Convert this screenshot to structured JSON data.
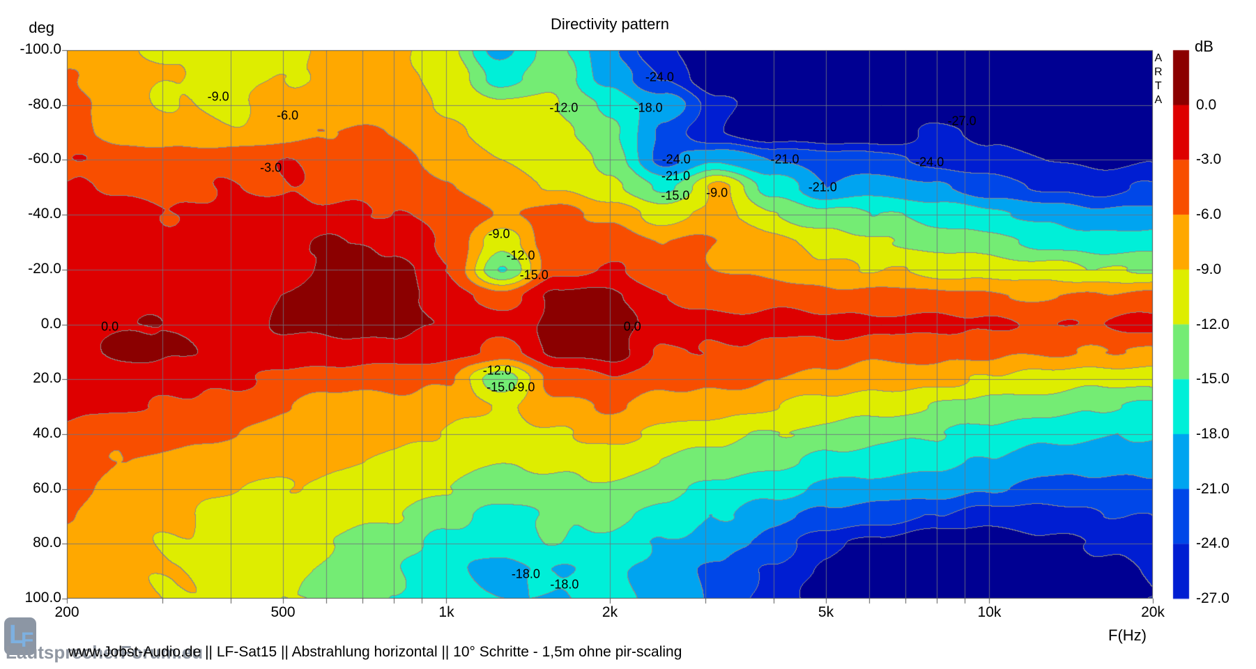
{
  "watermark": {
    "text": "ARTA"
  },
  "footer": {
    "text": "www.Jobst-Audio.de  ||  LF-Sat15  ||  Abstrahlung horizontal  ||  10° Schritte - 1,5m ohne pir-scaling"
  },
  "logo": {
    "letter_l": "L",
    "letter_f": "F",
    "wordmark": "LautsprecherForum.eu"
  },
  "chart_data": {
    "type": "heatmap",
    "title": "Directivity pattern",
    "xlabel": "F(Hz)",
    "ylabel": "deg",
    "x_scale": "log",
    "x_range_hz": [
      200,
      20000
    ],
    "y_range_deg": [
      -100,
      100
    ],
    "grid": true,
    "legend_position": "right-colorbar",
    "contour_interval_db": 3,
    "colorbar": {
      "title": "dB",
      "tick_labels": [
        "0.0",
        "-3.0",
        "-6.0",
        "-9.0",
        "-12.0",
        "-15.0",
        "-18.0",
        "-21.0",
        "-24.0",
        "-27.0"
      ]
    },
    "band_colors": [
      "#8B0000",
      "#DE0000",
      "#F84E00",
      "#FFA800",
      "#DEED00",
      "#74EC74",
      "#00EFD8",
      "#00A4F0",
      "#0047E8",
      "#001ED2",
      "#000092"
    ],
    "y_tick_labels": [
      "-100.0",
      "-80.0",
      "-60.0",
      "-40.0",
      "-20.0",
      "0.0",
      "20.0",
      "40.0",
      "60.0",
      "80.0",
      "100.0"
    ],
    "x_tick_labels": [
      {
        "label": "200",
        "f_hz": 200
      },
      {
        "label": "500",
        "f_hz": 500
      },
      {
        "label": "1k",
        "f_hz": 1000
      },
      {
        "label": "2k",
        "f_hz": 2000
      },
      {
        "label": "5k",
        "f_hz": 5000
      },
      {
        "label": "10k",
        "f_hz": 10000
      },
      {
        "label": "20k",
        "f_hz": 20000
      }
    ],
    "grid_frequencies_hz": [
      300,
      400,
      500,
      600,
      700,
      800,
      900,
      1000,
      2000,
      3000,
      4000,
      5000,
      6000,
      7000,
      8000,
      9000,
      10000
    ],
    "tick_frequencies_hz": [
      200,
      300,
      400,
      500,
      600,
      700,
      800,
      900,
      1000,
      2000,
      3000,
      4000,
      5000,
      6000,
      7000,
      8000,
      9000,
      10000,
      20000
    ],
    "frequencies_hz": [
      200,
      250,
      315,
      400,
      500,
      630,
      800,
      1000,
      1250,
      1600,
      2000,
      2500,
      3150,
      4000,
      5000,
      6300,
      8000,
      10000,
      12500,
      16000,
      20000
    ],
    "angles_deg": [
      -100,
      -90,
      -80,
      -70,
      -60,
      -50,
      -40,
      -30,
      -20,
      -10,
      0,
      10,
      20,
      30,
      40,
      50,
      60,
      70,
      80,
      90,
      100
    ],
    "values_db": [
      [
        -8,
        -8,
        -10,
        -10,
        -10,
        -8,
        -8,
        -11,
        -19,
        -14,
        -20,
        -27,
        -30,
        -30,
        -30,
        -30,
        -30,
        -30,
        -30,
        -30,
        -30
      ],
      [
        -6,
        -8,
        -9,
        -10,
        -9,
        -8,
        -8,
        -10,
        -16,
        -13,
        -19,
        -24,
        -30,
        -30,
        -30,
        -30,
        -30,
        -30,
        -30,
        -30,
        -30
      ],
      [
        -5,
        -8,
        -9,
        -10,
        -8,
        -7,
        -7,
        -9,
        -11,
        -12,
        -16,
        -19,
        -26,
        -30,
        -30,
        -30,
        -30,
        -30,
        -30,
        -30,
        -30
      ],
      [
        -5,
        -7,
        -8,
        -9,
        -7,
        -6,
        -6,
        -8,
        -10,
        -11,
        -14,
        -22,
        -27,
        -29,
        -30,
        -30,
        -26,
        -28,
        -30,
        -30,
        -29
      ],
      [
        -3,
        -4,
        -5,
        -4,
        -3,
        -5,
        -5,
        -7,
        -9,
        -10,
        -13,
        -22,
        -18,
        -21,
        -22,
        -23,
        -25,
        -26,
        -27,
        -28,
        -27
      ],
      [
        -3,
        -3,
        -4,
        -3,
        -3,
        -4,
        -4,
        -6,
        -8,
        -9,
        -11,
        -16,
        -8,
        -16,
        -21,
        -19,
        -21,
        -23,
        -24,
        -25,
        -24
      ],
      [
        -2,
        -2,
        -3,
        -2,
        -2,
        -2,
        -3,
        -4,
        -6,
        -5,
        -7,
        -10,
        -8,
        -12,
        -14,
        -15,
        -16,
        -17,
        -19,
        -20,
        -20
      ],
      [
        -2,
        -1,
        -2,
        -1,
        -1,
        0.5,
        -0.5,
        -3,
        -11,
        -4,
        -4,
        -6,
        -6,
        -8,
        -10,
        -12,
        -13,
        -14,
        -16,
        -17,
        -16
      ],
      [
        -2,
        -2,
        -2,
        -1,
        -1,
        1,
        1,
        -3,
        -15,
        -4,
        -3,
        -5,
        -6,
        -7,
        -8,
        -9,
        -10,
        -10,
        -11,
        -12,
        -12
      ],
      [
        -1,
        -1,
        -1,
        -1,
        0,
        1,
        1,
        -1,
        -5,
        1,
        0.5,
        -3,
        -4,
        -4,
        -5,
        -5,
        -5,
        -6,
        -6,
        -6,
        -5
      ],
      [
        -1,
        0,
        -0.5,
        -1,
        0.5,
        1,
        1,
        -0.5,
        -2,
        1,
        1,
        -1.5,
        -2,
        -2,
        -2,
        -2,
        -2.5,
        -2.5,
        -3,
        -3,
        -2
      ],
      [
        -1,
        0.5,
        0.5,
        -1,
        -1,
        -1,
        -1,
        -2,
        -4,
        0.5,
        1,
        -3,
        -3,
        -4,
        -4,
        -5,
        -5,
        -5,
        -6,
        -6,
        -6
      ],
      [
        -2,
        -2,
        -2,
        -2,
        -4,
        -5,
        -5,
        -6,
        -14,
        -5,
        -3,
        -5,
        -5,
        -6,
        -7,
        -8,
        -8,
        -9,
        -10,
        -11,
        -11
      ],
      [
        -2,
        -3,
        -3,
        -4,
        -6,
        -7,
        -7,
        -8,
        -9,
        -7,
        -6,
        -7,
        -8,
        -9,
        -10,
        -11,
        -12,
        -13,
        -14,
        -15,
        -15
      ],
      [
        -3,
        -5,
        -5,
        -6,
        -7,
        -8,
        -8,
        -9,
        -10,
        -9,
        -8,
        -10,
        -11,
        -12,
        -13,
        -14,
        -15,
        -16,
        -17,
        -18,
        -18
      ],
      [
        -4,
        -6,
        -7,
        -8,
        -8,
        -9,
        -9,
        -10,
        -12,
        -11,
        -10,
        -12,
        -13,
        -14,
        -16,
        -16,
        -17,
        -18,
        -19,
        -20,
        -20
      ],
      [
        -5,
        -7,
        -8,
        -9,
        -9,
        -10,
        -10,
        -12,
        -14,
        -13,
        -12,
        -14,
        -16,
        -17,
        -19,
        -19,
        -20,
        -21,
        -22,
        -22,
        -22
      ],
      [
        -6,
        -8,
        -8,
        -10,
        -10,
        -11,
        -12,
        -14,
        -16,
        -15,
        -14,
        -16,
        -18,
        -20,
        -22,
        -23,
        -24,
        -25,
        -25,
        -24,
        -24
      ],
      [
        -7,
        -8,
        -9,
        -10,
        -11,
        -12,
        -14,
        -16,
        -17,
        -15,
        -16,
        -18,
        -20,
        -22,
        -26,
        -28,
        -30,
        -30,
        -28,
        -27,
        -26
      ],
      [
        -7,
        -8,
        -9,
        -10,
        -11,
        -13,
        -15,
        -17,
        -19,
        -18,
        -17,
        -19,
        -22,
        -24,
        -28,
        -30,
        -30,
        -30,
        -29,
        -28,
        -27
      ],
      [
        -7,
        -8,
        -9,
        -10,
        -12,
        -13,
        -15,
        -17,
        -18,
        -18,
        -17,
        -19,
        -22,
        -25,
        -29,
        -30,
        -30,
        -30,
        -29,
        -28,
        -27
      ]
    ],
    "contour_labels": [
      {
        "text": "-9.0",
        "f_hz": 380,
        "angle_deg": -83
      },
      {
        "text": "-6.0",
        "f_hz": 510,
        "angle_deg": -76
      },
      {
        "text": "-3.0",
        "f_hz": 475,
        "angle_deg": -57
      },
      {
        "text": "-12.0",
        "f_hz": 1645,
        "angle_deg": -79
      },
      {
        "text": "-18.0",
        "f_hz": 2354,
        "angle_deg": -79
      },
      {
        "text": "-24.0",
        "f_hz": 2470,
        "angle_deg": -90
      },
      {
        "text": "-24.0",
        "f_hz": 2650,
        "angle_deg": -60
      },
      {
        "text": "-21.0",
        "f_hz": 2645,
        "angle_deg": -54
      },
      {
        "text": "-15.0",
        "f_hz": 2640,
        "angle_deg": -47
      },
      {
        "text": "-9.0",
        "f_hz": 3150,
        "angle_deg": -48
      },
      {
        "text": "-21.0",
        "f_hz": 4200,
        "angle_deg": -60
      },
      {
        "text": "-21.0",
        "f_hz": 4930,
        "angle_deg": -50
      },
      {
        "text": "-27.0",
        "f_hz": 8900,
        "angle_deg": -74
      },
      {
        "text": "-24.0",
        "f_hz": 7760,
        "angle_deg": -59
      },
      {
        "text": "-9.0",
        "f_hz": 1250,
        "angle_deg": -33
      },
      {
        "text": "-12.0",
        "f_hz": 1370,
        "angle_deg": -25
      },
      {
        "text": "-15.0",
        "f_hz": 1450,
        "angle_deg": -18
      },
      {
        "text": "0.0",
        "f_hz": 240,
        "angle_deg": 1
      },
      {
        "text": "0.0",
        "f_hz": 2200,
        "angle_deg": 1
      },
      {
        "text": "-12.0",
        "f_hz": 1240,
        "angle_deg": 17
      },
      {
        "text": "-15.0",
        "f_hz": 1260,
        "angle_deg": 23
      },
      {
        "text": "-9.0",
        "f_hz": 1390,
        "angle_deg": 23
      },
      {
        "text": "-18.0",
        "f_hz": 1400,
        "angle_deg": 91
      },
      {
        "text": "-18.0",
        "f_hz": 1650,
        "angle_deg": 95
      }
    ]
  }
}
